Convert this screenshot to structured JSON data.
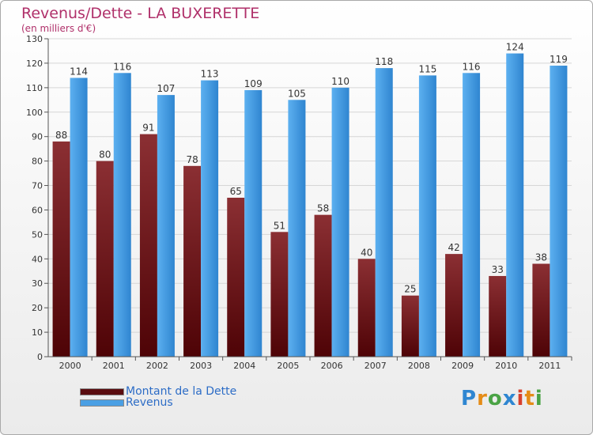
{
  "chart_data": {
    "type": "bar",
    "title": "Revenus/Dette - LA BUXERETTE",
    "subtitle": "(en milliers d'€)",
    "categories": [
      "2000",
      "2001",
      "2002",
      "2003",
      "2004",
      "2005",
      "2006",
      "2007",
      "2008",
      "2009",
      "2010",
      "2011"
    ],
    "series": [
      {
        "name": "Montant de la Dette",
        "color": "#7a1d20",
        "values": [
          88,
          80,
          91,
          78,
          65,
          51,
          58,
          40,
          25,
          42,
          33,
          38
        ]
      },
      {
        "name": "Revenus",
        "color": "#4a9fe4",
        "values": [
          114,
          116,
          107,
          113,
          109,
          105,
          110,
          118,
          115,
          116,
          124,
          119
        ]
      }
    ],
    "ylim": [
      0,
      130
    ],
    "yticks": [
      0,
      10,
      20,
      30,
      40,
      50,
      60,
      70,
      80,
      90,
      100,
      110,
      120,
      130
    ],
    "grid": true,
    "legend_position": "bottom-left"
  },
  "logo": {
    "letters": [
      "P",
      "r",
      "o",
      "x",
      "i",
      "t",
      "i"
    ],
    "colors": [
      "#2f86d1",
      "#e58c17",
      "#4aa345",
      "#2f86d1",
      "#d8402d",
      "#e58c17",
      "#4aa345"
    ]
  }
}
